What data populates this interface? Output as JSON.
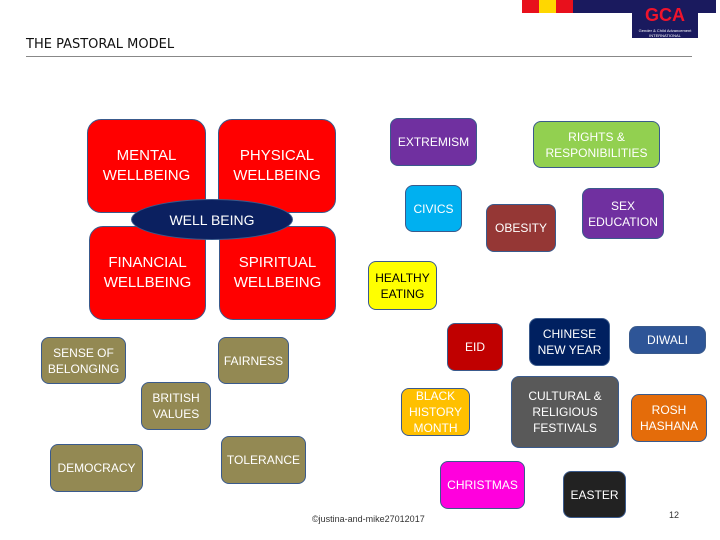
{
  "header": {
    "title": "THE PASTORAL MODEL",
    "logo_text": "GCA",
    "logo_subtext": "Gender & Child Advancement INTERNATIONAL"
  },
  "wellbeing": {
    "center": "WELL BEING",
    "quadrants": [
      "MENTAL\nWELLBEING",
      "PHYSICAL\nWELLBEING",
      "FINANCIAL\nWELLBEING",
      "SPIRITUAL\nWELLBEING"
    ]
  },
  "topics": [
    {
      "label": "EXTREMISM",
      "color": "#7030a0"
    },
    {
      "label": "RIGHTS &\nRESPONIBILITIES",
      "color": "#92d050"
    },
    {
      "label": "CIVICS",
      "color": "#00b0f0"
    },
    {
      "label": "OBESITY",
      "color": "#953735"
    },
    {
      "label": "SEX\nEDUCATION",
      "color": "#7030a0"
    },
    {
      "label": "HEALTHY\nEATING",
      "color": "#ffff00"
    },
    {
      "label": "EID",
      "color": "#c00000"
    },
    {
      "label": "CHINESE\nNEW YEAR",
      "color": "#002060"
    },
    {
      "label": "DIWALI",
      "color": "#2e5597"
    },
    {
      "label": "BLACK\nHISTORY\nMONTH",
      "color": "#ffc000"
    },
    {
      "label": "CULTURAL &\nRELIGIOUS\nFESTIVALS",
      "color": "#595959"
    },
    {
      "label": "ROSH\nHASHANA",
      "color": "#e46c0a"
    },
    {
      "label": "CHRISTMAS",
      "color": "#ff00dd"
    },
    {
      "label": "EASTER",
      "color": "#222222"
    },
    {
      "label": "SENSE OF\nBELONGING",
      "color": "#938953"
    },
    {
      "label": "FAIRNESS",
      "color": "#938953"
    },
    {
      "label": "BRITISH\nVALUES",
      "color": "#938953"
    },
    {
      "label": "DEMOCRACY",
      "color": "#938953"
    },
    {
      "label": "TOLERANCE",
      "color": "#938953"
    }
  ],
  "footer": {
    "copyright": "©justina-and-mike27012017",
    "page_number": "12"
  }
}
